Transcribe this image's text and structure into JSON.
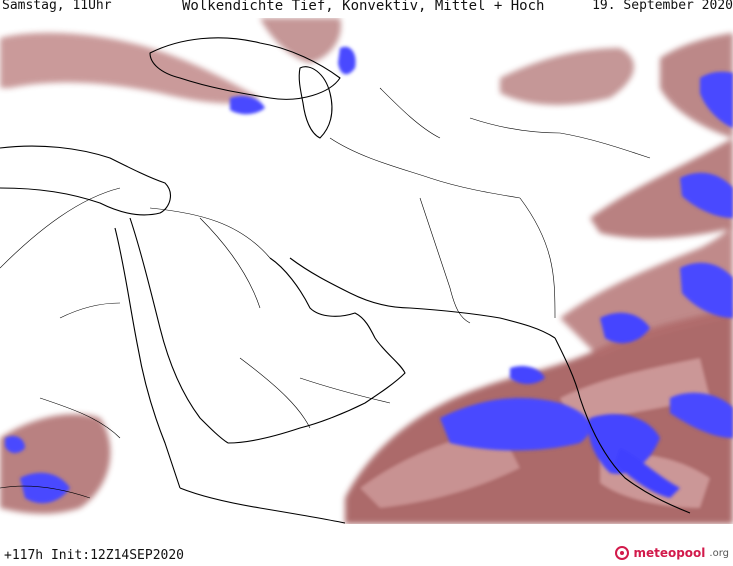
{
  "header": {
    "left": "Samstag, 11Uhr",
    "title": "Wolkendichte  Tief, Konvektiv, Mittel + Hoch",
    "right": "19. September 2020"
  },
  "footer": {
    "run_info": "+117h Init:12Z14SEP2020",
    "logo_text": "meteopool",
    "logo_suffix": ".org"
  },
  "colors": {
    "land_bg": "#ffffff",
    "cloud_low": "#8a3a3a",
    "cloud_mid": "#c98a8a",
    "cloud_high": "#4545ff",
    "border_line": "#000000"
  }
}
